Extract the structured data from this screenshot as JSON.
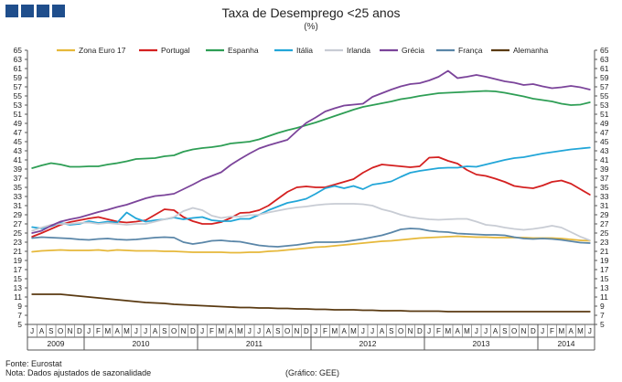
{
  "header": {
    "title": "Taxa de Desemprego <25 anos",
    "subtitle": "(%)"
  },
  "footer": {
    "source": "Fonte: Eurostat",
    "note": "Nota: Dados ajustados de sazonalidade",
    "credit": "(Gráfico: GEE)"
  },
  "chart_data": {
    "type": "line",
    "title": "Taxa de Desemprego <25 anos",
    "subtitle": "(%)",
    "ylim": [
      5,
      65
    ],
    "yticks": [
      5,
      7,
      9,
      11,
      13,
      15,
      17,
      19,
      21,
      23,
      25,
      27,
      29,
      31,
      33,
      35,
      37,
      39,
      41,
      43,
      45,
      47,
      49,
      51,
      53,
      55,
      57,
      59,
      61,
      63,
      65
    ],
    "grid": false,
    "legend_position": "top",
    "categories": [
      "J",
      "A",
      "S",
      "O",
      "N",
      "D",
      "J",
      "F",
      "M",
      "A",
      "M",
      "J",
      "J",
      "A",
      "S",
      "O",
      "N",
      "D",
      "J",
      "F",
      "M",
      "A",
      "M",
      "J",
      "J",
      "A",
      "S",
      "O",
      "N",
      "D",
      "J",
      "F",
      "M",
      "A",
      "M",
      "J",
      "J",
      "A",
      "S",
      "O",
      "N",
      "D",
      "J",
      "F",
      "M",
      "A",
      "M",
      "J",
      "J",
      "A",
      "S",
      "O",
      "N",
      "D",
      "J",
      "F",
      "M",
      "A",
      "M",
      "J"
    ],
    "year_labels": [
      {
        "label": "2009",
        "from": 0,
        "to": 5
      },
      {
        "label": "2010",
        "from": 6,
        "to": 17
      },
      {
        "label": "2011",
        "from": 18,
        "to": 29
      },
      {
        "label": "2012",
        "from": 30,
        "to": 41
      },
      {
        "label": "2013",
        "from": 42,
        "to": 53
      },
      {
        "label": "2014",
        "from": 54,
        "to": 59
      }
    ],
    "series": [
      {
        "name": "Zona Euro 17",
        "color": "#e6b83a",
        "values": [
          20.9,
          21.1,
          21.2,
          21.3,
          21.2,
          21.2,
          21.2,
          21.3,
          21.1,
          21.3,
          21.2,
          21.1,
          21.1,
          21.1,
          21.0,
          21.0,
          20.9,
          20.8,
          20.8,
          20.8,
          20.8,
          20.7,
          20.7,
          20.8,
          20.8,
          21.0,
          21.1,
          21.3,
          21.5,
          21.7,
          21.9,
          22.0,
          22.2,
          22.4,
          22.6,
          22.8,
          23.0,
          23.2,
          23.3,
          23.5,
          23.7,
          23.9,
          24.0,
          24.1,
          24.2,
          24.3,
          24.2,
          24.1,
          24.1,
          24.0,
          24.0,
          24.0,
          24.0,
          23.9,
          23.9,
          23.9,
          23.8,
          23.6,
          23.4,
          23.3
        ]
      },
      {
        "name": "Portugal",
        "color": "#d42020",
        "values": [
          24.2,
          25.0,
          25.9,
          26.8,
          27.4,
          27.8,
          28.2,
          28.5,
          28.0,
          27.5,
          27.3,
          27.5,
          27.8,
          29.0,
          30.2,
          30.0,
          28.5,
          27.6,
          27.0,
          27.0,
          27.4,
          28.3,
          29.4,
          29.5,
          30.0,
          31.0,
          32.5,
          34.0,
          35.0,
          35.2,
          35.0,
          35.0,
          35.6,
          36.2,
          36.8,
          38.2,
          39.3,
          40.0,
          39.8,
          39.6,
          39.4,
          39.6,
          41.5,
          41.6,
          40.8,
          40.2,
          38.8,
          37.8,
          37.5,
          36.9,
          36.2,
          35.3,
          35.0,
          34.8,
          35.4,
          36.2,
          36.5,
          35.8,
          34.6,
          33.4
        ]
      },
      {
        "name": "Espanha",
        "color": "#2e9e55",
        "values": [
          39.2,
          39.8,
          40.3,
          40.0,
          39.5,
          39.5,
          39.6,
          39.6,
          40.0,
          40.3,
          40.7,
          41.2,
          41.3,
          41.4,
          41.8,
          42.0,
          42.8,
          43.3,
          43.6,
          43.8,
          44.1,
          44.6,
          44.8,
          45.0,
          45.5,
          46.2,
          46.9,
          47.5,
          48.0,
          48.6,
          49.2,
          49.9,
          50.6,
          51.3,
          52.0,
          52.6,
          53.0,
          53.4,
          53.8,
          54.3,
          54.6,
          55.0,
          55.3,
          55.6,
          55.7,
          55.8,
          55.9,
          56.0,
          56.1,
          56.0,
          55.7,
          55.3,
          54.9,
          54.4,
          54.1,
          53.8,
          53.3,
          53.0,
          53.1,
          53.6
        ]
      },
      {
        "name": "Itália",
        "color": "#22a6d8",
        "values": [
          26.3,
          26.0,
          26.5,
          27.2,
          26.8,
          27.0,
          27.6,
          27.2,
          27.5,
          27.3,
          29.5,
          28.2,
          27.5,
          27.8,
          28.0,
          28.4,
          28.0,
          28.3,
          28.5,
          27.8,
          27.6,
          27.6,
          28.1,
          28.1,
          29.0,
          30.0,
          30.8,
          31.6,
          32.0,
          32.5,
          33.6,
          34.8,
          35.3,
          34.8,
          35.3,
          34.6,
          35.6,
          35.9,
          36.3,
          37.3,
          38.2,
          38.6,
          38.9,
          39.2,
          39.3,
          39.3,
          39.6,
          39.5,
          40.0,
          40.5,
          41.0,
          41.4,
          41.6,
          42.0,
          42.4,
          42.7,
          43.0,
          43.3,
          43.5,
          43.7
        ]
      },
      {
        "name": "Irlanda",
        "color": "#c8ccd4",
        "values": [
          25.5,
          26.2,
          26.8,
          27.0,
          27.0,
          27.2,
          27.3,
          27.0,
          27.2,
          27.0,
          26.8,
          27.0,
          27.0,
          27.5,
          28.0,
          28.5,
          29.8,
          30.5,
          30.0,
          28.8,
          28.3,
          28.6,
          28.6,
          28.9,
          29.0,
          29.5,
          29.9,
          30.3,
          30.6,
          30.8,
          31.1,
          31.3,
          31.4,
          31.4,
          31.4,
          31.3,
          31.0,
          30.2,
          29.7,
          29.0,
          28.5,
          28.2,
          28.0,
          27.9,
          28.0,
          28.1,
          28.1,
          27.5,
          26.8,
          26.6,
          26.2,
          25.9,
          25.7,
          25.9,
          26.2,
          26.6,
          26.2,
          25.2,
          24.2,
          23.4
        ]
      },
      {
        "name": "Grécia",
        "color": "#7b449a",
        "values": [
          25.0,
          25.5,
          26.6,
          27.5,
          28.0,
          28.4,
          29.0,
          29.6,
          30.1,
          30.7,
          31.2,
          31.9,
          32.6,
          33.1,
          33.3,
          33.6,
          34.6,
          35.6,
          36.7,
          37.5,
          38.3,
          39.9,
          41.2,
          42.4,
          43.5,
          44.2,
          44.8,
          45.4,
          47.3,
          49.1,
          50.3,
          51.6,
          52.3,
          52.9,
          53.1,
          53.3,
          54.8,
          55.6,
          56.4,
          57.1,
          57.6,
          57.8,
          58.4,
          59.2,
          60.5,
          58.9,
          59.2,
          59.6,
          59.2,
          58.7,
          58.2,
          57.9,
          57.4,
          57.6,
          57.1,
          56.7,
          56.9,
          57.2,
          56.9,
          56.4
        ]
      },
      {
        "name": "França",
        "color": "#5a86a8",
        "values": [
          23.9,
          24.1,
          24.0,
          23.9,
          23.8,
          23.6,
          23.5,
          23.7,
          23.8,
          23.6,
          23.5,
          23.6,
          23.8,
          24.0,
          24.1,
          24.0,
          23.0,
          22.6,
          22.9,
          23.3,
          23.4,
          23.2,
          23.1,
          22.7,
          22.3,
          22.1,
          22.0,
          22.2,
          22.4,
          22.7,
          23.0,
          23.0,
          23.0,
          23.1,
          23.4,
          23.7,
          24.1,
          24.5,
          25.1,
          25.8,
          26.0,
          25.9,
          25.5,
          25.3,
          25.2,
          24.9,
          24.8,
          24.7,
          24.6,
          24.6,
          24.5,
          24.1,
          23.8,
          23.7,
          23.8,
          23.7,
          23.5,
          23.2,
          22.9,
          22.8
        ]
      },
      {
        "name": "Alemanha",
        "color": "#5a3a12",
        "values": [
          11.6,
          11.6,
          11.6,
          11.6,
          11.4,
          11.2,
          11.0,
          10.8,
          10.6,
          10.4,
          10.2,
          10.0,
          9.8,
          9.7,
          9.6,
          9.4,
          9.3,
          9.2,
          9.1,
          9.0,
          8.9,
          8.8,
          8.7,
          8.7,
          8.6,
          8.6,
          8.5,
          8.5,
          8.4,
          8.4,
          8.3,
          8.3,
          8.2,
          8.2,
          8.2,
          8.1,
          8.1,
          8.0,
          8.0,
          8.0,
          7.9,
          7.9,
          7.9,
          7.9,
          7.8,
          7.8,
          7.8,
          7.8,
          7.8,
          7.8,
          7.8,
          7.8,
          7.8,
          7.8,
          7.8,
          7.8,
          7.8,
          7.8,
          7.8,
          7.8
        ]
      }
    ]
  }
}
